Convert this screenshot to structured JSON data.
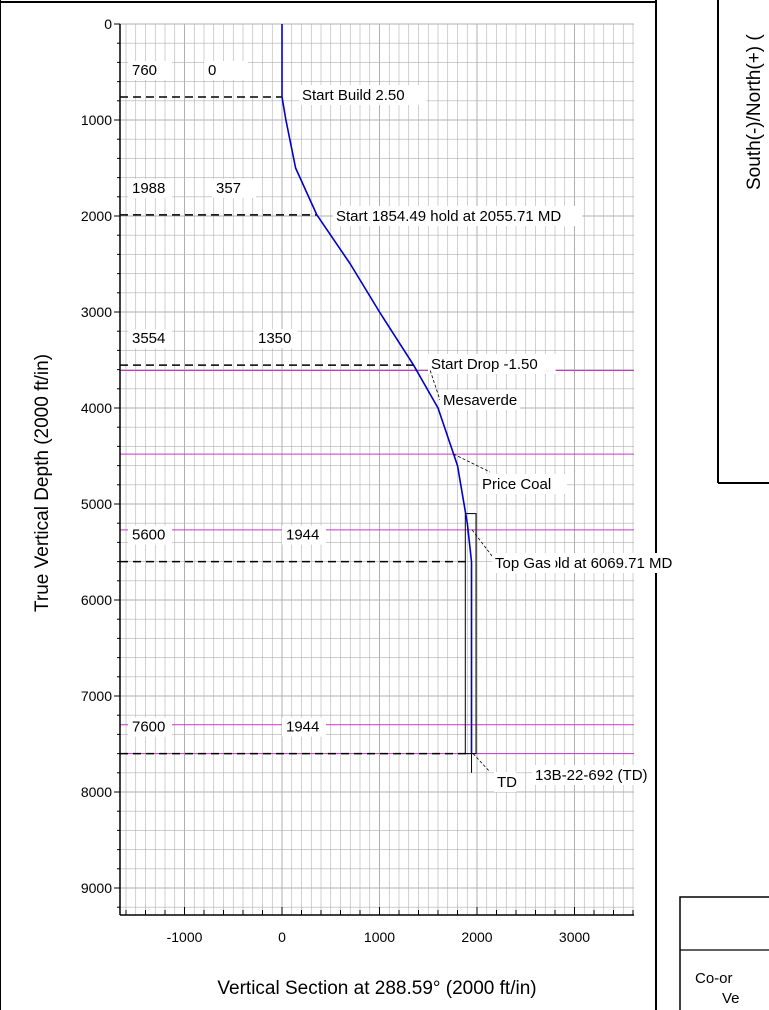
{
  "chart_data": {
    "type": "line",
    "xlabel": "Vertical Section at 288.59° (2000 ft/in)",
    "ylabel": "True Vertical Depth (2000 ft/in)",
    "xlim": [
      -1700,
      3650
    ],
    "ylim": [
      9350,
      0
    ],
    "x_ticks": [
      -1000,
      0,
      1000,
      2000,
      3000
    ],
    "y_ticks": [
      0,
      1000,
      2000,
      3000,
      4000,
      5000,
      6000,
      7000,
      8000,
      9000
    ],
    "grid": true,
    "colors": {
      "wellpath": "#0000cc",
      "formation": "#cc33cc",
      "marker": "#000000",
      "grid": "#b0b0b0"
    },
    "series": [
      {
        "x": [
          0,
          0,
          40,
          140,
          357,
          700,
          1000,
          1350,
          1600,
          1800,
          1900,
          1944,
          1944
        ],
        "y": [
          0,
          760,
          1000,
          1500,
          1988,
          2500,
          3000,
          3554,
          4000,
          4600,
          5200,
          5600,
          7600
        ]
      }
    ],
    "sections": [
      {
        "tvd": 760,
        "vs": 0,
        "label": "Start Build 2.50",
        "tvd_text": "760",
        "vs_text": "0"
      },
      {
        "tvd": 1988,
        "vs": 357,
        "label": "Start 1854.49 hold at 2055.71 MD",
        "tvd_text": "1988",
        "vs_text": "357"
      },
      {
        "tvd": 3554,
        "vs": 1350,
        "label": "Start Drop -1.50",
        "tvd_text": "3554",
        "vs_text": "1350"
      },
      {
        "tvd": 5600,
        "vs": 1944,
        "label": "0.00 hold at 6069.71 MD",
        "tvd_text": "5600",
        "vs_text": "1944"
      },
      {
        "tvd": 7600,
        "vs": 1944,
        "label": "13B-22-692 (TD)",
        "tvd_text": "7600",
        "vs_text": "1944"
      }
    ],
    "formations": [
      {
        "tvd": 3610,
        "name": "Mesaverde"
      },
      {
        "tvd": 4480,
        "name": "Price Coal"
      },
      {
        "tvd": 5270,
        "name": "Top Gas"
      },
      {
        "tvd": 7300,
        "name": ""
      },
      {
        "tvd": 7600,
        "name": "TD"
      }
    ],
    "target_box": {
      "vs": [
        1880,
        1990
      ],
      "tvd": [
        5100,
        7600
      ]
    }
  },
  "right_panel": {
    "axis_label": "South(-)/North(+) (",
    "table_line1": "Co-or",
    "table_line2": "Ve"
  }
}
